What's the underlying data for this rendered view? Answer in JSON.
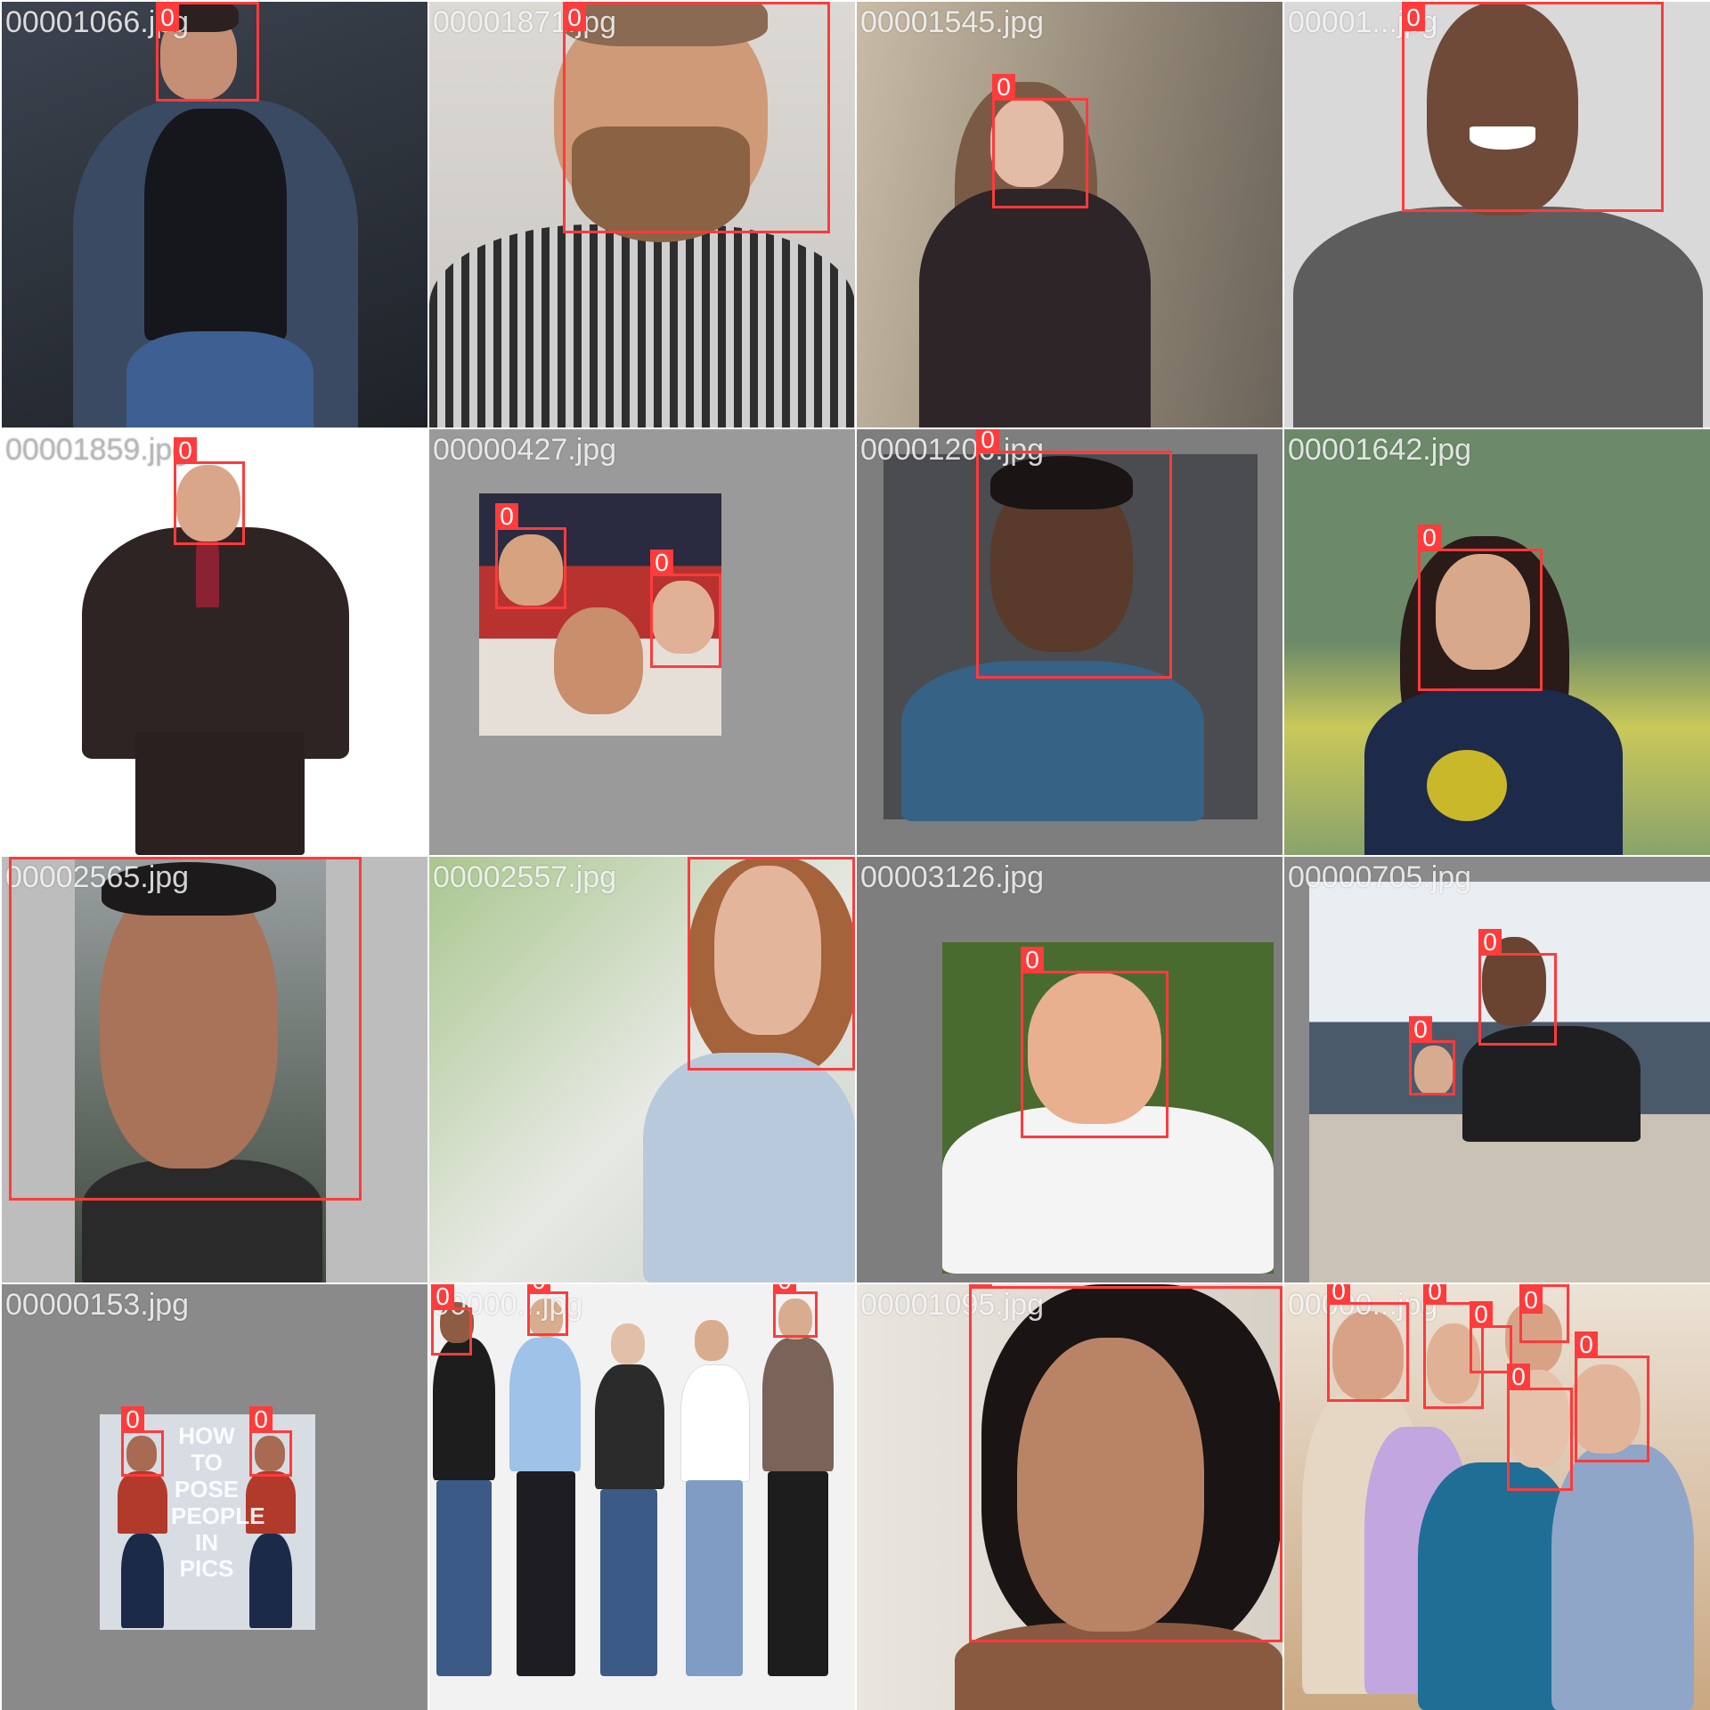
{
  "tiles": [
    {
      "filename": "00001066.jpg",
      "colors": [
        "#2b3038",
        "#3a4a63",
        "#15171c"
      ],
      "boxes": [
        {
          "label": "0"
        }
      ]
    },
    {
      "filename": "00001871.jpg",
      "colors": [
        "#d7d4cf",
        "#cf9a78",
        "#3b3b3b"
      ],
      "boxes": [
        {
          "label": "0"
        }
      ]
    },
    {
      "filename": "00001545.jpg",
      "colors": [
        "#a89a86",
        "#d8b39c",
        "#2d2528"
      ],
      "boxes": [
        {
          "label": "0"
        }
      ]
    },
    {
      "filename": "00001...jpg",
      "colors": [
        "#d9d9d9",
        "#6f4a38",
        "#5d5d5d"
      ],
      "boxes": [
        {
          "label": "0"
        }
      ]
    },
    {
      "filename": "00001859.jpg",
      "colors": [
        "#ffffff",
        "#d9a68a",
        "#2f2424"
      ],
      "boxes": [
        {
          "label": "0"
        }
      ]
    },
    {
      "filename": "00000427.jpg",
      "colors": [
        "#9a9a9a",
        "#b8322f",
        "#d6a27f"
      ],
      "boxes": [
        {
          "label": "0"
        },
        {
          "label": "0"
        }
      ]
    },
    {
      "filename": "00001206.jpg",
      "colors": [
        "#7e7e7e",
        "#5a3a2a",
        "#356285"
      ],
      "boxes": [
        {
          "label": "0"
        }
      ]
    },
    {
      "filename": "00001642.jpg",
      "colors": [
        "#8aa36b",
        "#d8a88a",
        "#1d2a4a"
      ],
      "boxes": [
        {
          "label": "0"
        }
      ]
    },
    {
      "filename": "00002565.jpg",
      "colors": [
        "#bdbdbd",
        "#a87358",
        "#2a2a2a"
      ],
      "boxes": [
        {
          "label": "0"
        }
      ]
    },
    {
      "filename": "00002557.jpg",
      "colors": [
        "#c8d6b8",
        "#e3b59b",
        "#b9c9dc"
      ],
      "boxes": [
        {
          "label": "0"
        }
      ]
    },
    {
      "filename": "00003126.jpg",
      "colors": [
        "#7e7e7e",
        "#e8b08f",
        "#f4f4f4"
      ],
      "boxes": [
        {
          "label": "0"
        }
      ]
    },
    {
      "filename": "00000705.jpg",
      "colors": [
        "#8a8a8a",
        "#6b4331",
        "#c9c2b5"
      ],
      "boxes": [
        {
          "label": "0"
        },
        {
          "label": "0"
        }
      ]
    },
    {
      "filename": "00000153.jpg",
      "colors": [
        "#8a8a8a",
        "#a86a52",
        "#b23a2a"
      ],
      "boxes": [
        {
          "label": "0"
        },
        {
          "label": "0"
        }
      ],
      "poster": "HOW TO POSE PEOPLE IN PICS"
    },
    {
      "filename": "00000...jpg",
      "colors": [
        "#f2f2f2",
        "#d8ad8f",
        "#3b5a86"
      ],
      "boxes": [
        {
          "label": "0"
        },
        {
          "label": "0"
        },
        {
          "label": "0"
        }
      ]
    },
    {
      "filename": "00001095.jpg",
      "colors": [
        "#e9e5df",
        "#b98466",
        "#1a1414"
      ],
      "boxes": [
        {
          "label": "0"
        }
      ]
    },
    {
      "filename": "00000...jpg",
      "colors": [
        "#e6d6c4",
        "#e0b195",
        "#1f6e96"
      ],
      "boxes": [
        {
          "label": "0"
        },
        {
          "label": "0"
        },
        {
          "label": "0"
        },
        {
          "label": "0"
        },
        {
          "label": "0"
        },
        {
          "label": "0"
        }
      ]
    }
  ]
}
